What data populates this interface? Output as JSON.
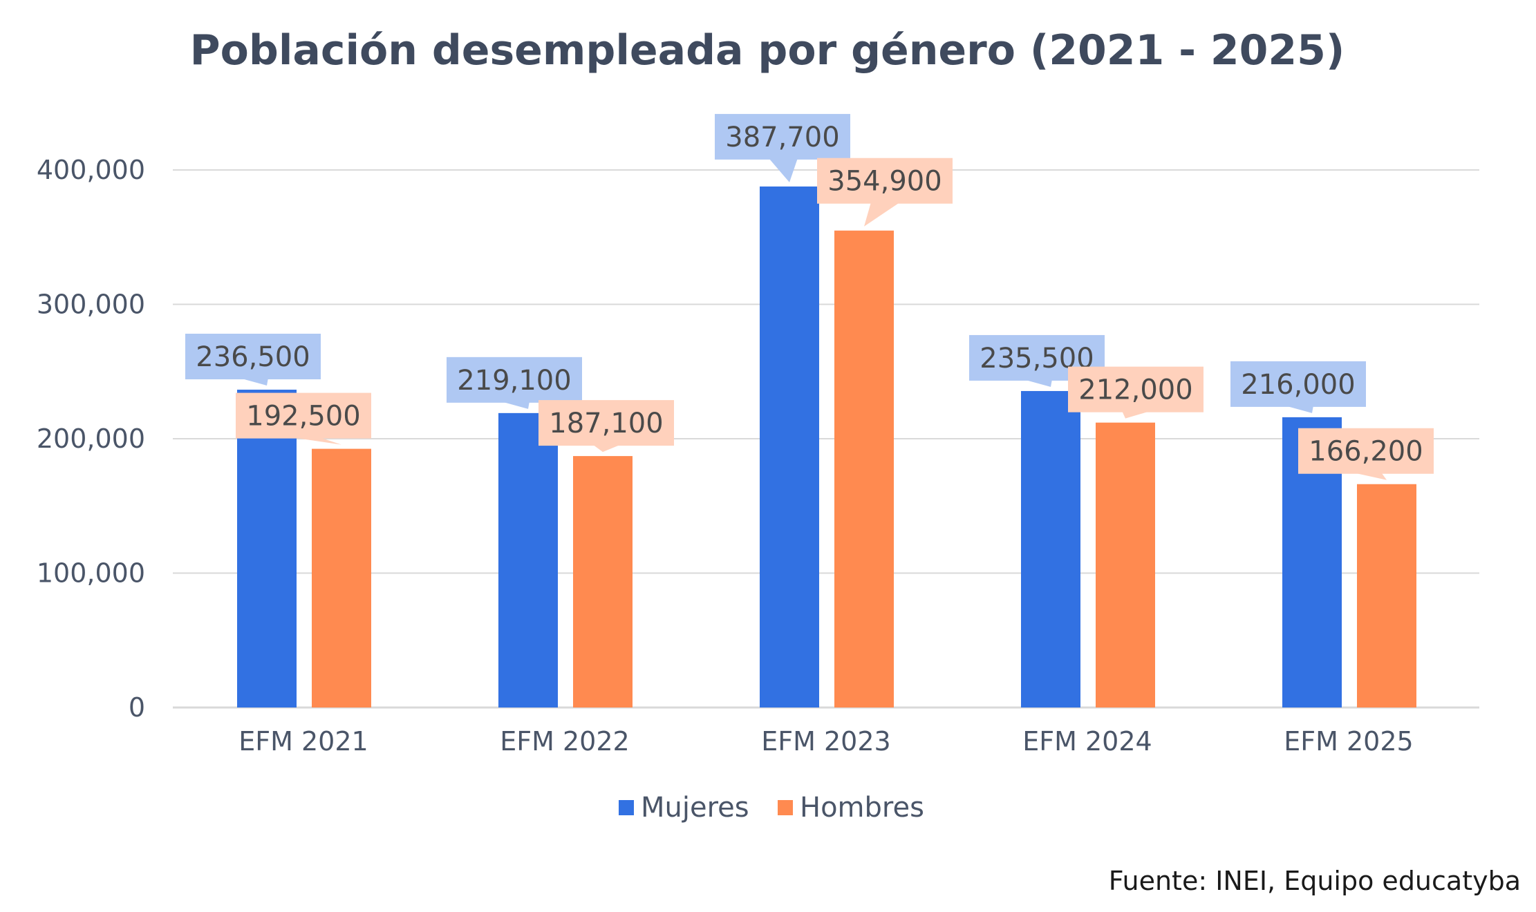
{
  "chart_data": {
    "type": "bar",
    "title": "Población desempleada por género (2021 - 2025)",
    "categories": [
      "EFM 2021",
      "EFM 2022",
      "EFM 2023",
      "EFM 2024",
      "EFM 2025"
    ],
    "series": [
      {
        "name": "Mujeres",
        "color": "#3271E2",
        "label_color": "#AFC8F3",
        "values": [
          236500,
          219100,
          387700,
          235500,
          216000
        ],
        "labels": [
          "236,500",
          "219,100",
          "387,700",
          "235,500",
          "216,000"
        ]
      },
      {
        "name": "Hombres",
        "color": "#FF8A50",
        "label_color": "#FFD1BC",
        "values": [
          192500,
          187100,
          354900,
          212000,
          166200
        ],
        "labels": [
          "192,500",
          "187,100",
          "354,900",
          "212,000",
          "166,200"
        ]
      }
    ],
    "ylim": [
      0,
      400000
    ],
    "yticks": [
      0,
      100000,
      200000,
      300000,
      400000
    ],
    "ytick_labels": [
      "0",
      "100,000",
      "200,000",
      "300,000",
      "400,000"
    ],
    "xlabel": "",
    "ylabel": "",
    "grid": true,
    "legend_position": "bottom-center",
    "source": "Fuente: INEI, Equipo educatyba"
  },
  "colors": {
    "title": "#3F4A5E",
    "axis_text": "#4A5568",
    "label_text": "#4A4A4A",
    "grid": "#D9D9D9",
    "source_text": "#1A1A1A"
  }
}
